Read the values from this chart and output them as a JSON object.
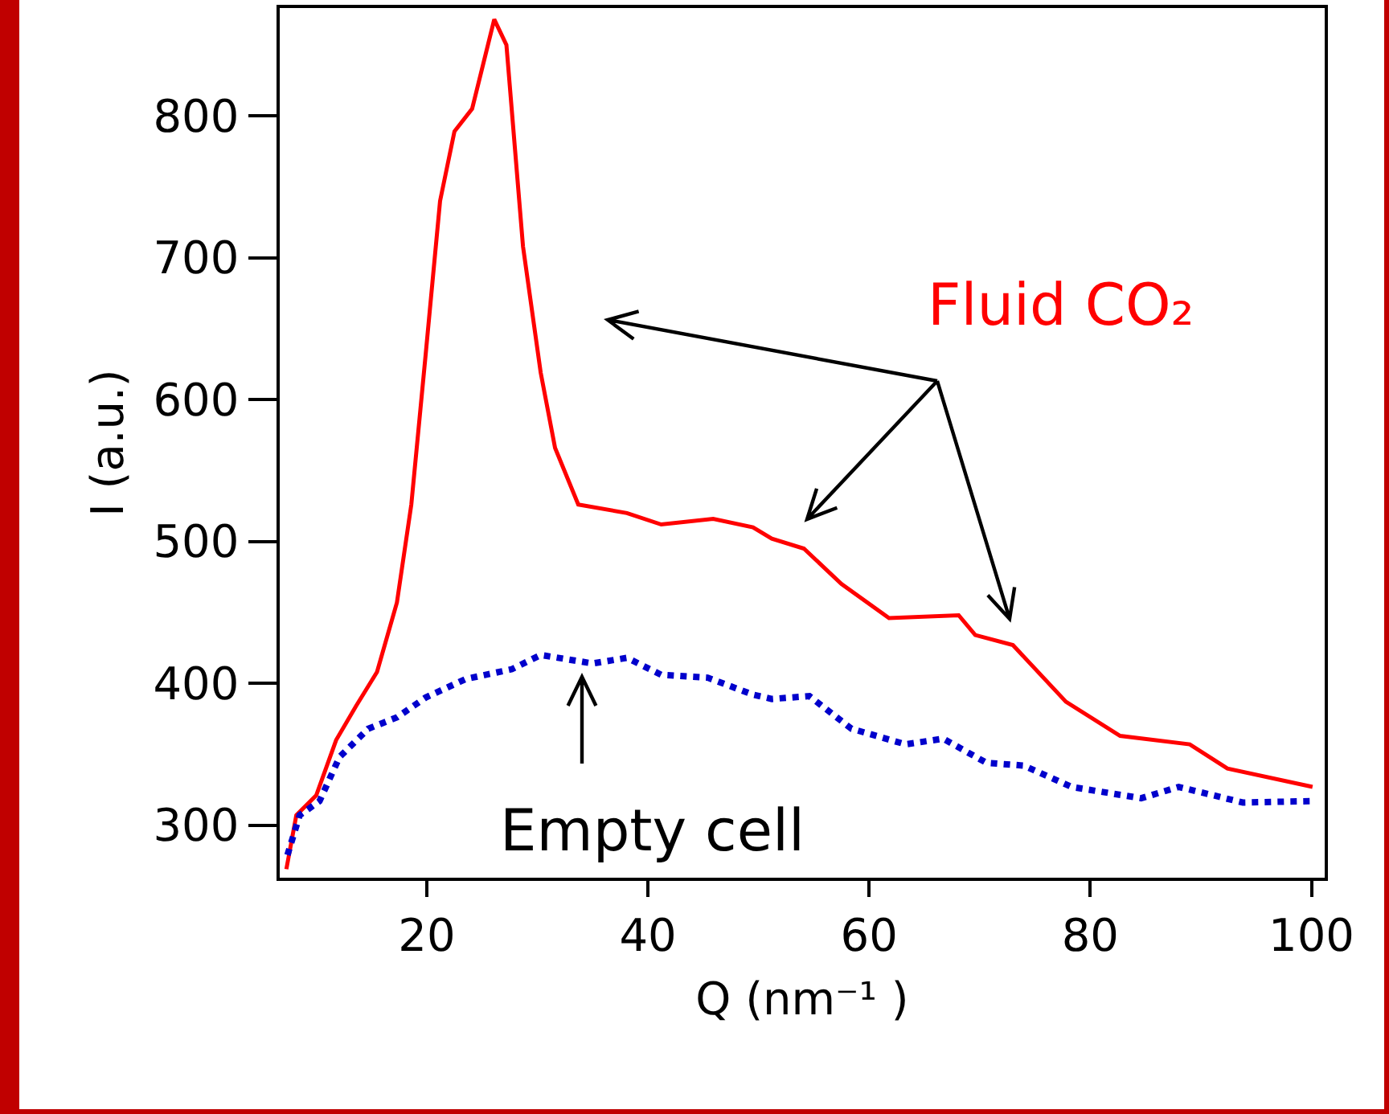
{
  "chart_data": {
    "type": "line",
    "xlabel": "Q (nm⁻¹ )",
    "ylabel": "I (a.u.)",
    "xlim": [
      6.7,
      101.2
    ],
    "xticks": [
      20,
      40,
      60,
      80,
      100
    ],
    "ylim": [
      263,
      876
    ],
    "yticks": [
      300,
      400,
      500,
      600,
      700,
      800
    ],
    "grid": false,
    "legend": false,
    "marker": "none",
    "series": [
      {
        "name": "Fluid CO₂",
        "color": "#ff0000",
        "line_style": "solid",
        "x": [
          7.3,
          8.2,
          10.0,
          11.8,
          13.6,
          15.5,
          17.3,
          18.6,
          19.9,
          21.2,
          22.5,
          24.1,
          26.1,
          27.2,
          28.7,
          30.3,
          31.6,
          33.7,
          38.1,
          41.2,
          45.9,
          49.5,
          51.2,
          54.1,
          57.5,
          61.8,
          68.1,
          69.6,
          73.0,
          77.8,
          82.7,
          89.0,
          92.4,
          100.1
        ],
        "values": [
          269,
          307,
          321,
          360,
          384,
          408,
          457,
          526,
          632,
          740,
          789,
          805,
          868,
          850,
          708,
          619,
          566,
          526,
          520,
          512,
          516,
          510,
          502,
          495,
          470,
          446,
          448,
          434,
          427,
          387,
          363,
          357,
          340,
          327
        ]
      },
      {
        "name": "Empty cell",
        "color": "#0000cc",
        "line_style": "dotted",
        "x": [
          7.4,
          8.5,
          10.3,
          12.1,
          14.7,
          17.3,
          19.9,
          23.5,
          27.7,
          30.3,
          35.0,
          38.1,
          41.2,
          45.4,
          49.5,
          51.2,
          54.6,
          58.4,
          63.3,
          66.7,
          70.6,
          74.0,
          78.3,
          84.6,
          88.0,
          93.8,
          100.1
        ],
        "values": [
          279,
          307,
          317,
          348,
          368,
          376,
          390,
          403,
          410,
          420,
          414,
          418,
          406,
          404,
          392,
          389,
          391,
          368,
          357,
          361,
          344,
          342,
          327,
          319,
          327,
          316,
          317
        ]
      }
    ]
  }
}
